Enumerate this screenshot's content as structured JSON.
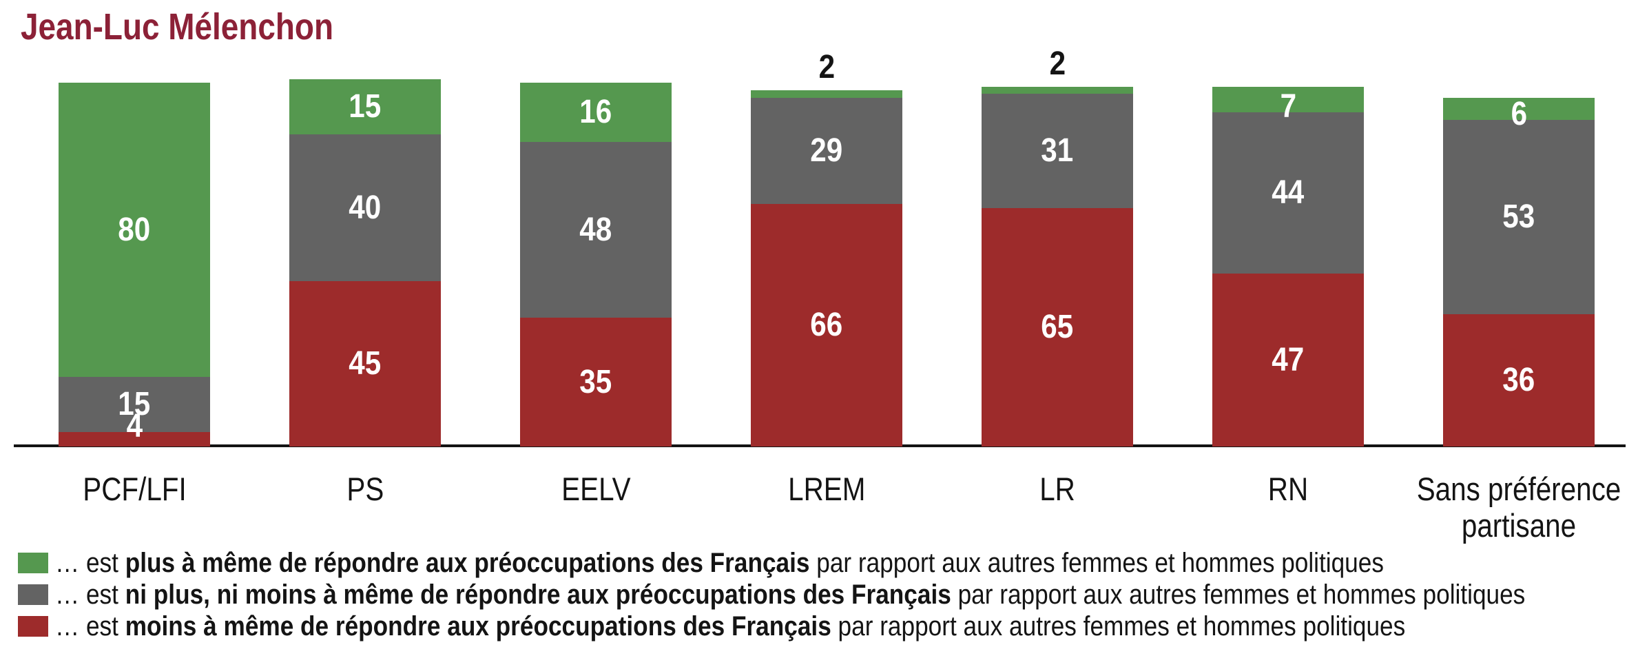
{
  "chart_data": {
    "type": "bar",
    "variant": "stacked-vertical-percentage",
    "title": "Jean-Luc Mélenchon",
    "title_color": "#8c2137",
    "categories": [
      "PCF/LFI",
      "PS",
      "EELV",
      "LREM",
      "LR",
      "RN",
      "Sans préférence partisane"
    ],
    "series": [
      {
        "name": "plus-a-meme",
        "color": "#55984f",
        "values": [
          80,
          15,
          16,
          2,
          2,
          7,
          6
        ],
        "legend_prefix": "… est ",
        "legend_bold": "plus à même de répondre aux préoccupations des Français",
        "legend_suffix": " par rapport aux autres femmes et hommes politiques"
      },
      {
        "name": "ni-plus-ni-moins",
        "color": "#636363",
        "values": [
          15,
          40,
          48,
          29,
          31,
          44,
          53
        ],
        "legend_prefix": "… est ",
        "legend_bold": "ni plus, ni moins à même de répondre aux préoccupations des Français",
        "legend_suffix": " par rapport aux autres femmes et hommes politiques"
      },
      {
        "name": "moins-a-meme",
        "color": "#9d2b2b",
        "values": [
          4,
          45,
          35,
          66,
          65,
          47,
          36
        ],
        "legend_prefix": "… est ",
        "legend_bold": "moins à même de répondre aux préoccupations des Français",
        "legend_suffix": " par rapport aux autres femmes et hommes politiques"
      }
    ],
    "stack_order": "series listed top-to-bottom in each bar (green on top, grey middle, dark red at bottom)",
    "ylim": [
      0,
      100
    ],
    "unit": "%",
    "grid": false,
    "value_label_color_inside": "#ffffff",
    "value_label_color_outside": "#141414",
    "axis_line_color": "#141414",
    "legend_position": "bottom-left"
  }
}
